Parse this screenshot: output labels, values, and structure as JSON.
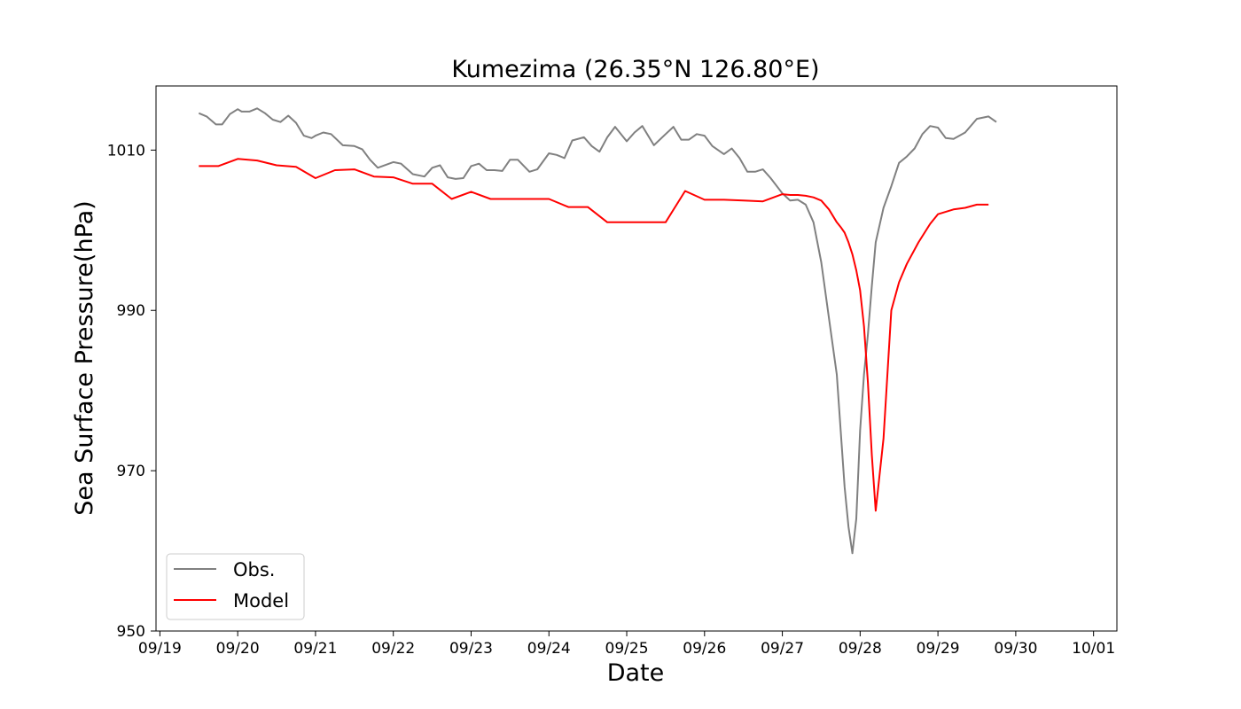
{
  "chart_data": {
    "type": "line",
    "title": "Kumezima (26.35°N 126.80°E)",
    "xlabel": "Date",
    "ylabel": "Sea Surface Pressure(hPa)",
    "x_axis": {
      "unit": "days since 09/19 00:00",
      "range": [
        -0.05,
        12.3
      ],
      "ticks": [
        0,
        1,
        2,
        3,
        4,
        5,
        6,
        7,
        8,
        9,
        10,
        11,
        12
      ],
      "tick_labels": [
        "09/19",
        "09/20",
        "09/21",
        "09/22",
        "09/23",
        "09/24",
        "09/25",
        "09/26",
        "09/27",
        "09/28",
        "09/29",
        "09/30",
        "10/01"
      ]
    },
    "y_axis": {
      "range": [
        950,
        1018
      ],
      "ticks": [
        950,
        970,
        990,
        1010
      ],
      "tick_labels": [
        "950",
        "970",
        "990",
        "1010"
      ]
    },
    "grid": false,
    "legend": {
      "position": "lower-left",
      "entries": [
        "Obs.",
        "Model"
      ]
    },
    "series": [
      {
        "name": "Obs.",
        "color": "#808080",
        "x": [
          0.5,
          0.6,
          0.72,
          0.8,
          0.9,
          1.0,
          1.05,
          1.15,
          1.25,
          1.35,
          1.45,
          1.55,
          1.65,
          1.75,
          1.85,
          1.95,
          2.0,
          2.1,
          2.2,
          2.35,
          2.5,
          2.6,
          2.7,
          2.8,
          3.0,
          3.1,
          3.25,
          3.4,
          3.5,
          3.6,
          3.7,
          3.8,
          3.9,
          4.0,
          4.1,
          4.2,
          4.3,
          4.4,
          4.5,
          4.6,
          4.75,
          4.85,
          5.0,
          5.1,
          5.2,
          5.3,
          5.45,
          5.55,
          5.65,
          5.75,
          5.85,
          6.0,
          6.1,
          6.2,
          6.35,
          6.5,
          6.6,
          6.7,
          6.8,
          6.9,
          7.0,
          7.1,
          7.25,
          7.35,
          7.45,
          7.55,
          7.65,
          7.75,
          7.85,
          8.0,
          8.1,
          8.2,
          8.3,
          8.4,
          8.5,
          8.6,
          8.7,
          8.75,
          8.8,
          8.85,
          8.9,
          8.95,
          9.0,
          9.05,
          9.1,
          9.15,
          9.2,
          9.3,
          9.4,
          9.5,
          9.6,
          9.7,
          9.8,
          9.9,
          10.0,
          10.1,
          10.2,
          10.35,
          10.5,
          10.65,
          10.75
        ],
        "y": [
          1014.6,
          1014.2,
          1013.2,
          1013.2,
          1014.5,
          1015.1,
          1014.8,
          1014.8,
          1015.2,
          1014.6,
          1013.8,
          1013.5,
          1014.3,
          1013.4,
          1011.8,
          1011.5,
          1011.8,
          1012.2,
          1012.0,
          1010.6,
          1010.5,
          1010.1,
          1008.8,
          1007.8,
          1008.5,
          1008.3,
          1007.0,
          1006.7,
          1007.8,
          1008.1,
          1006.6,
          1006.4,
          1006.5,
          1008.0,
          1008.3,
          1007.5,
          1007.5,
          1007.4,
          1008.8,
          1008.8,
          1007.3,
          1007.6,
          1009.6,
          1009.4,
          1009.0,
          1011.2,
          1011.6,
          1010.5,
          1009.8,
          1011.6,
          1012.9,
          1011.1,
          1012.2,
          1013.0,
          1010.6,
          1012.0,
          1012.9,
          1011.3,
          1011.3,
          1012.0,
          1011.8,
          1010.5,
          1009.5,
          1010.2,
          1009.0,
          1007.3,
          1007.3,
          1007.6,
          1006.5,
          1004.6,
          1003.7,
          1003.8,
          1003.2,
          1001.0,
          996.0,
          989.0,
          982.0,
          975.0,
          968.0,
          963.0,
          959.7,
          964.0,
          975.0,
          982.0,
          987.0,
          993.0,
          998.5,
          1002.8,
          1005.5,
          1008.4,
          1009.2,
          1010.2,
          1012.0,
          1013.0,
          1012.8,
          1011.5,
          1011.4,
          1012.2,
          1013.9,
          1014.2,
          1013.5
        ]
      },
      {
        "name": "Model",
        "color": "#ff0000",
        "x": [
          0.5,
          0.75,
          1.0,
          1.25,
          1.5,
          1.75,
          2.0,
          2.25,
          2.5,
          2.75,
          3.0,
          3.25,
          3.5,
          3.75,
          4.0,
          4.25,
          4.5,
          4.75,
          5.0,
          5.25,
          5.5,
          5.75,
          6.0,
          6.25,
          6.5,
          6.75,
          7.0,
          7.25,
          7.5,
          7.75,
          8.0,
          8.1,
          8.2,
          8.3,
          8.4,
          8.5,
          8.6,
          8.7,
          8.75,
          8.8,
          8.85,
          8.9,
          8.95,
          9.0,
          9.05,
          9.1,
          9.15,
          9.2,
          9.3,
          9.4,
          9.5,
          9.6,
          9.75,
          9.9,
          10.0,
          10.2,
          10.35,
          10.5,
          10.65
        ],
        "y": [
          1008.0,
          1008.0,
          1008.9,
          1008.7,
          1008.1,
          1007.9,
          1006.5,
          1007.5,
          1007.6,
          1006.7,
          1006.6,
          1005.8,
          1005.8,
          1003.9,
          1004.8,
          1003.9,
          1003.9,
          1003.9,
          1003.9,
          1002.9,
          1002.9,
          1001.0,
          1001.0,
          1001.0,
          1001.0,
          1004.9,
          1003.8,
          1003.8,
          1003.7,
          1003.6,
          1004.5,
          1004.4,
          1004.4,
          1004.3,
          1004.1,
          1003.7,
          1002.6,
          1001.0,
          1000.4,
          999.7,
          998.5,
          997.0,
          995.0,
          992.5,
          988.0,
          981.0,
          972.0,
          965.0,
          974.0,
          990.0,
          993.5,
          995.8,
          998.5,
          1000.8,
          1002.0,
          1002.6,
          1002.8,
          1003.2,
          1003.2
        ]
      }
    ]
  }
}
